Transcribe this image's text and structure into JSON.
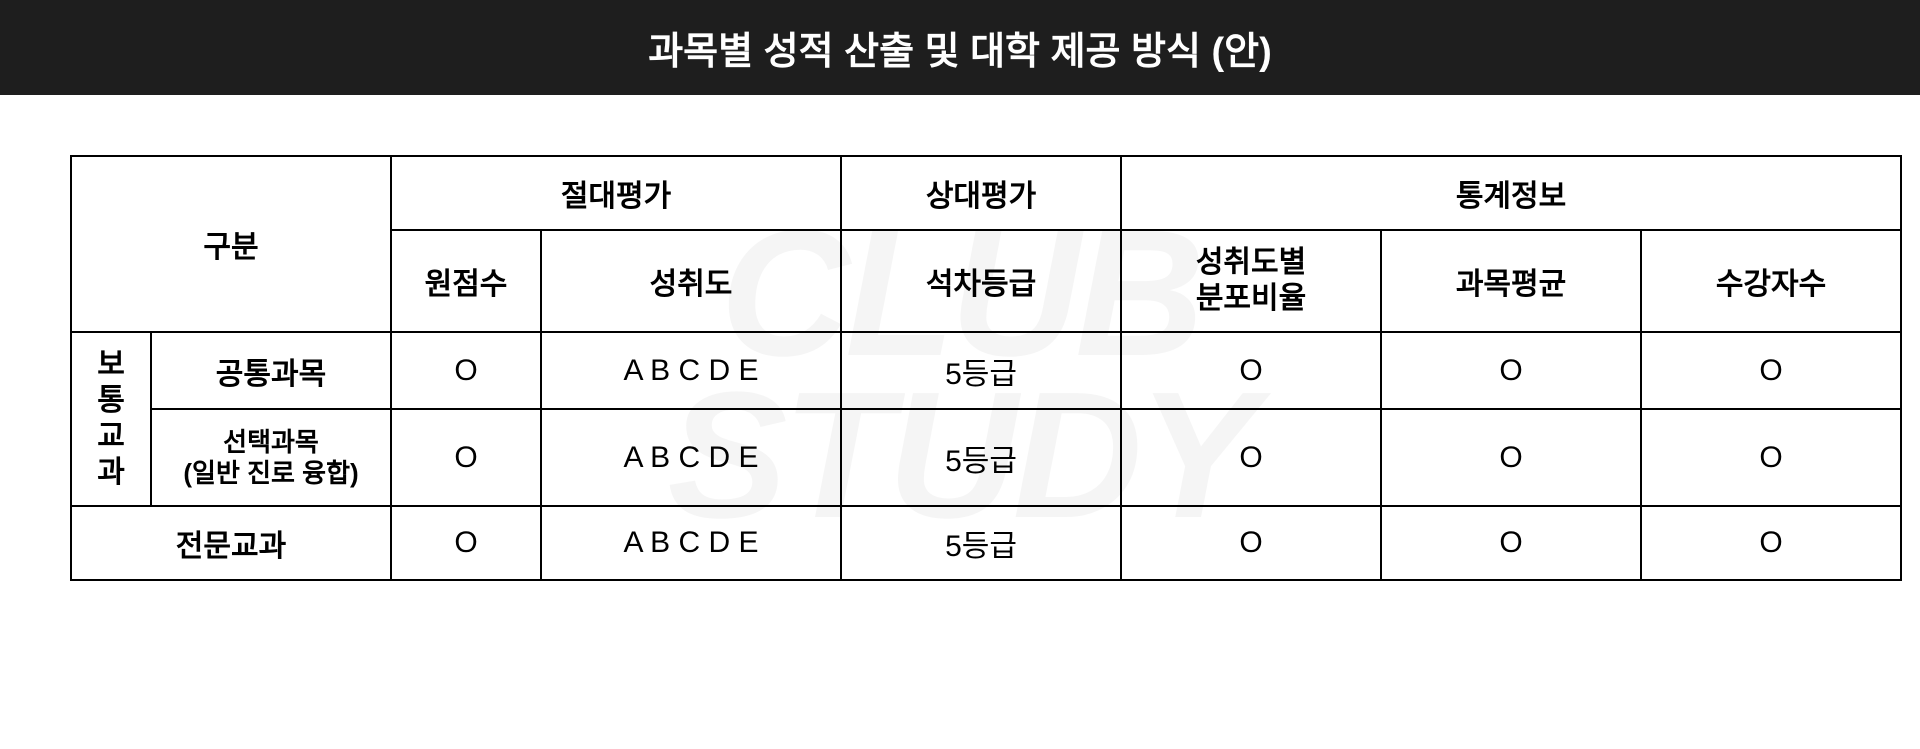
{
  "watermark": "CLUB\nSTUDY",
  "title": "과목별 성적 산출 및 대학 제공 방식 (안)",
  "headers": {
    "category": "구분",
    "absolute": "절대평가",
    "relative": "상대평가",
    "stats": "통계정보",
    "raw_score": "원점수",
    "achievement": "성취도",
    "rank_grade": "석차등급",
    "dist_ratio_line1": "성취도별",
    "dist_ratio_line2": "분포비율",
    "subject_avg": "과목평균",
    "student_count": "수강자수"
  },
  "row_groups": {
    "general_vert": "보통교과",
    "common_subject": "공통과목",
    "elective_line1": "선택과목",
    "elective_line2": "(일반 진로 융합)",
    "specialized": "전문교과"
  },
  "rows": [
    {
      "raw": "O",
      "ach": "A B C D E",
      "rank": "5등급",
      "dist": "O",
      "avg": "O",
      "cnt": "O"
    },
    {
      "raw": "O",
      "ach": "A B C D E",
      "rank": "5등급",
      "dist": "O",
      "avg": "O",
      "cnt": "O"
    },
    {
      "raw": "O",
      "ach": "A B C D E",
      "rank": "5등급",
      "dist": "O",
      "avg": "O",
      "cnt": "O"
    }
  ],
  "styles": {
    "header_bg": "#1e1e1e",
    "header_fg": "#ffffff",
    "border_color": "#000000",
    "body_bg": "#ffffff",
    "watermark_color": "rgba(0,0,0,0.04)",
    "title_fontsize": 38,
    "cell_fontsize": 30,
    "sub_fontsize": 26
  }
}
